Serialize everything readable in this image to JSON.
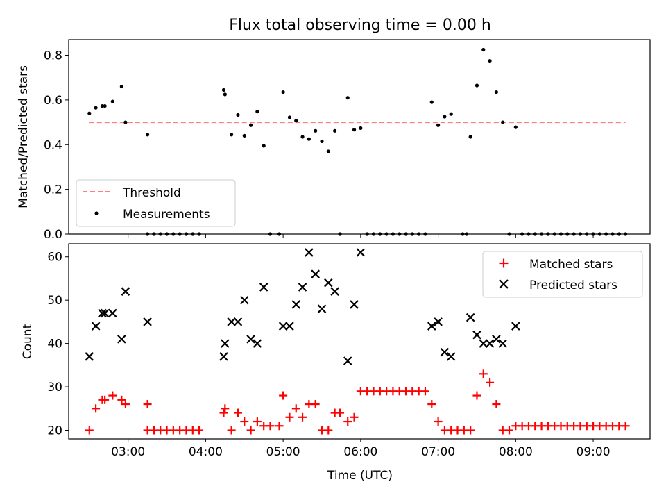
{
  "figure": {
    "title": "Flux total observing time = 0.00 h"
  },
  "chart_data": [
    {
      "type": "scatter",
      "panel": "top",
      "title": "Flux total observing time = 0.00 h",
      "xlabel": "",
      "ylabel": "Matched/Predicted stars",
      "x_is_time": true,
      "xlim": [
        "02:14",
        "09:44"
      ],
      "ylim": [
        0,
        0.87
      ],
      "xticks": [
        "03:00",
        "04:00",
        "05:00",
        "06:00",
        "07:00",
        "08:00",
        "09:00"
      ],
      "xticks_labeled": false,
      "yticks": [
        0.0,
        0.2,
        0.4,
        0.6,
        0.8
      ],
      "ytick_labels": [
        "0.0",
        "0.2",
        "0.4",
        "0.6",
        "0.8"
      ],
      "grid": false,
      "legend_position": "lower-left",
      "threshold": {
        "name": "Threshold",
        "value": 0.5,
        "x_range": [
          "02:30",
          "09:25"
        ],
        "color": "#ff7f7f",
        "style": "dashed"
      },
      "series": [
        {
          "name": "Measurements",
          "marker": "dot",
          "color": "#000000",
          "points": [
            [
              "02:30",
              0.54
            ],
            [
              "02:35",
              0.565
            ],
            [
              "02:40",
              0.573
            ],
            [
              "02:42",
              0.573
            ],
            [
              "02:48",
              0.593
            ],
            [
              "02:55",
              0.66
            ],
            [
              "02:58",
              0.5
            ],
            [
              "03:15",
              0.445
            ],
            [
              "03:15",
              0.0
            ],
            [
              "03:20",
              0.0
            ],
            [
              "03:25",
              0.0
            ],
            [
              "03:30",
              0.0
            ],
            [
              "03:35",
              0.0
            ],
            [
              "03:40",
              0.0
            ],
            [
              "03:45",
              0.0
            ],
            [
              "03:50",
              0.0
            ],
            [
              "03:55",
              0.0
            ],
            [
              "04:14",
              0.645
            ],
            [
              "04:15",
              0.625
            ],
            [
              "04:20",
              0.445
            ],
            [
              "04:25",
              0.533
            ],
            [
              "04:30",
              0.44
            ],
            [
              "04:35",
              0.487
            ],
            [
              "04:40",
              0.548
            ],
            [
              "04:45",
              0.395
            ],
            [
              "04:50",
              0.0
            ],
            [
              "04:57",
              0.0
            ],
            [
              "05:00",
              0.635
            ],
            [
              "05:05",
              0.522
            ],
            [
              "05:10",
              0.507
            ],
            [
              "05:15",
              0.435
            ],
            [
              "05:20",
              0.425
            ],
            [
              "05:25",
              0.462
            ],
            [
              "05:30",
              0.415
            ],
            [
              "05:35",
              0.37
            ],
            [
              "05:40",
              0.462
            ],
            [
              "05:44",
              0.0
            ],
            [
              "05:50",
              0.61
            ],
            [
              "05:55",
              0.467
            ],
            [
              "06:00",
              0.474
            ],
            [
              "06:05",
              0.0
            ],
            [
              "06:10",
              0.0
            ],
            [
              "06:15",
              0.0
            ],
            [
              "06:20",
              0.0
            ],
            [
              "06:25",
              0.0
            ],
            [
              "06:30",
              0.0
            ],
            [
              "06:35",
              0.0
            ],
            [
              "06:40",
              0.0
            ],
            [
              "06:45",
              0.0
            ],
            [
              "06:50",
              0.0
            ],
            [
              "06:55",
              0.59
            ],
            [
              "07:00",
              0.487
            ],
            [
              "07:05",
              0.525
            ],
            [
              "07:10",
              0.537
            ],
            [
              "07:19",
              0.0
            ],
            [
              "07:22",
              0.0
            ],
            [
              "07:25",
              0.435
            ],
            [
              "07:30",
              0.665
            ],
            [
              "07:35",
              0.825
            ],
            [
              "07:40",
              0.775
            ],
            [
              "07:45",
              0.635
            ],
            [
              "07:50",
              0.5
            ],
            [
              "07:55",
              0.0
            ],
            [
              "08:00",
              0.478
            ],
            [
              "08:05",
              0.0
            ],
            [
              "08:10",
              0.0
            ],
            [
              "08:15",
              0.0
            ],
            [
              "08:20",
              0.0
            ],
            [
              "08:25",
              0.0
            ],
            [
              "08:30",
              0.0
            ],
            [
              "08:35",
              0.0
            ],
            [
              "08:40",
              0.0
            ],
            [
              "08:45",
              0.0
            ],
            [
              "08:50",
              0.0
            ],
            [
              "08:55",
              0.0
            ],
            [
              "09:00",
              0.0
            ],
            [
              "09:05",
              0.0
            ],
            [
              "09:10",
              0.0
            ],
            [
              "09:15",
              0.0
            ],
            [
              "09:20",
              0.0
            ],
            [
              "09:25",
              0.0
            ]
          ]
        }
      ]
    },
    {
      "type": "scatter",
      "panel": "bottom",
      "title": "",
      "xlabel": "Time (UTC)",
      "ylabel": "Count",
      "x_is_time": true,
      "xlim": [
        "02:14",
        "09:44"
      ],
      "ylim": [
        18,
        63
      ],
      "xticks": [
        "03:00",
        "04:00",
        "05:00",
        "06:00",
        "07:00",
        "08:00",
        "09:00"
      ],
      "xticks_labeled": true,
      "yticks": [
        20,
        30,
        40,
        50,
        60
      ],
      "ytick_labels": [
        "20",
        "30",
        "40",
        "50",
        "60"
      ],
      "grid": false,
      "legend_position": "top-right",
      "series": [
        {
          "name": "Matched stars",
          "marker": "plus",
          "color": "#ff0000",
          "points": [
            [
              "02:30",
              20
            ],
            [
              "02:35",
              25
            ],
            [
              "02:40",
              27
            ],
            [
              "02:42",
              27
            ],
            [
              "02:48",
              28
            ],
            [
              "02:55",
              27
            ],
            [
              "02:58",
              26
            ],
            [
              "03:15",
              26
            ],
            [
              "03:15",
              20
            ],
            [
              "03:20",
              20
            ],
            [
              "03:25",
              20
            ],
            [
              "03:30",
              20
            ],
            [
              "03:35",
              20
            ],
            [
              "03:40",
              20
            ],
            [
              "03:45",
              20
            ],
            [
              "03:50",
              20
            ],
            [
              "03:55",
              20
            ],
            [
              "04:14",
              24
            ],
            [
              "04:15",
              25
            ],
            [
              "04:20",
              20
            ],
            [
              "04:25",
              24
            ],
            [
              "04:30",
              22
            ],
            [
              "04:35",
              20
            ],
            [
              "04:40",
              22
            ],
            [
              "04:45",
              21
            ],
            [
              "04:50",
              21
            ],
            [
              "04:57",
              21
            ],
            [
              "05:00",
              28
            ],
            [
              "05:05",
              23
            ],
            [
              "05:10",
              25
            ],
            [
              "05:15",
              23
            ],
            [
              "05:20",
              26
            ],
            [
              "05:25",
              26
            ],
            [
              "05:30",
              20
            ],
            [
              "05:35",
              20
            ],
            [
              "05:40",
              24
            ],
            [
              "05:44",
              24
            ],
            [
              "05:50",
              22
            ],
            [
              "05:55",
              23
            ],
            [
              "06:00",
              29
            ],
            [
              "06:05",
              29
            ],
            [
              "06:10",
              29
            ],
            [
              "06:15",
              29
            ],
            [
              "06:20",
              29
            ],
            [
              "06:25",
              29
            ],
            [
              "06:30",
              29
            ],
            [
              "06:35",
              29
            ],
            [
              "06:40",
              29
            ],
            [
              "06:45",
              29
            ],
            [
              "06:50",
              29
            ],
            [
              "06:55",
              26
            ],
            [
              "07:00",
              22
            ],
            [
              "07:05",
              20
            ],
            [
              "07:10",
              20
            ],
            [
              "07:15",
              20
            ],
            [
              "07:20",
              20
            ],
            [
              "07:25",
              20
            ],
            [
              "07:30",
              28
            ],
            [
              "07:35",
              33
            ],
            [
              "07:40",
              31
            ],
            [
              "07:45",
              26
            ],
            [
              "07:50",
              20
            ],
            [
              "07:55",
              20
            ],
            [
              "08:00",
              21
            ],
            [
              "08:05",
              21
            ],
            [
              "08:10",
              21
            ],
            [
              "08:15",
              21
            ],
            [
              "08:20",
              21
            ],
            [
              "08:25",
              21
            ],
            [
              "08:30",
              21
            ],
            [
              "08:35",
              21
            ],
            [
              "08:40",
              21
            ],
            [
              "08:45",
              21
            ],
            [
              "08:50",
              21
            ],
            [
              "08:55",
              21
            ],
            [
              "09:00",
              21
            ],
            [
              "09:05",
              21
            ],
            [
              "09:10",
              21
            ],
            [
              "09:15",
              21
            ],
            [
              "09:20",
              21
            ],
            [
              "09:25",
              21
            ]
          ]
        },
        {
          "name": "Predicted stars",
          "marker": "x",
          "color": "#000000",
          "points": [
            [
              "02:30",
              37
            ],
            [
              "02:35",
              44
            ],
            [
              "02:40",
              47
            ],
            [
              "02:42",
              47
            ],
            [
              "02:48",
              47
            ],
            [
              "02:55",
              41
            ],
            [
              "02:58",
              52
            ],
            [
              "03:15",
              45
            ],
            [
              "04:14",
              37
            ],
            [
              "04:15",
              40
            ],
            [
              "04:20",
              45
            ],
            [
              "04:25",
              45
            ],
            [
              "04:30",
              50
            ],
            [
              "04:35",
              41
            ],
            [
              "04:40",
              40
            ],
            [
              "04:45",
              53
            ],
            [
              "05:00",
              44
            ],
            [
              "05:05",
              44
            ],
            [
              "05:10",
              49
            ],
            [
              "05:15",
              53
            ],
            [
              "05:20",
              61
            ],
            [
              "05:25",
              56
            ],
            [
              "05:30",
              48
            ],
            [
              "05:35",
              54
            ],
            [
              "05:40",
              52
            ],
            [
              "05:50",
              36
            ],
            [
              "05:55",
              49
            ],
            [
              "06:00",
              61
            ],
            [
              "06:55",
              44
            ],
            [
              "07:00",
              45
            ],
            [
              "07:05",
              38
            ],
            [
              "07:10",
              37
            ],
            [
              "07:25",
              46
            ],
            [
              "07:30",
              42
            ],
            [
              "07:35",
              40
            ],
            [
              "07:40",
              40
            ],
            [
              "07:45",
              41
            ],
            [
              "07:50",
              40
            ],
            [
              "08:00",
              44
            ]
          ]
        }
      ]
    }
  ]
}
